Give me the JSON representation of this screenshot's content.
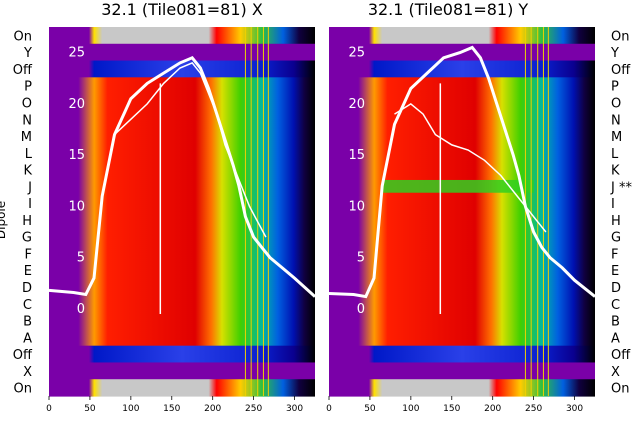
{
  "chart_data": {
    "type": "heatmap",
    "ylabel": "Dipole",
    "dipole_labels_left": [
      "On",
      "Y",
      "Off",
      "P",
      "O",
      "N",
      "M",
      "L",
      "K",
      "J",
      "I",
      "H",
      "G",
      "F",
      "E",
      "D",
      "C",
      "B",
      "A",
      "Off",
      "X",
      "On"
    ],
    "dipole_labels_right": [
      "On",
      "Y",
      "Off",
      "P",
      "O",
      "N",
      "M",
      "L",
      "K",
      "J **",
      "I",
      "H",
      "G",
      "F",
      "E",
      "D",
      "C",
      "B",
      "A",
      "Off",
      "X",
      "On"
    ],
    "xlim": [
      0,
      325
    ],
    "xticks": [
      0,
      50,
      100,
      150,
      200,
      250,
      300
    ],
    "overlay_ylim": [
      -8.5,
      27.5
    ],
    "overlay_yticks": [
      0,
      5,
      10,
      15,
      20,
      25
    ],
    "panels": [
      {
        "title": "32.1 (Tile081=81) X",
        "bandpass_db": {
          "x": [
            0,
            30,
            45,
            55,
            65,
            80,
            100,
            120,
            140,
            160,
            175,
            185,
            195,
            205,
            215,
            225,
            232,
            240,
            250,
            260,
            270,
            285,
            300,
            325
          ],
          "y": [
            1.8,
            1.6,
            1.4,
            3,
            11,
            17,
            20.5,
            22,
            23,
            24,
            24.5,
            23.5,
            21.5,
            19,
            16.5,
            14,
            12,
            9,
            7,
            6,
            5,
            4,
            3,
            1.2
          ]
        },
        "secondary_db": {
          "x": [
            80,
            100,
            120,
            140,
            160,
            175,
            185,
            195,
            205,
            215,
            225,
            235,
            245,
            255,
            265
          ],
          "y": [
            17,
            18.5,
            20,
            22,
            23.5,
            24,
            23,
            21,
            19,
            16,
            14,
            12,
            10,
            8.5,
            7
          ]
        }
      },
      {
        "title": "32.1 (Tile081=81) Y",
        "bandpass_db": {
          "x": [
            0,
            30,
            45,
            55,
            65,
            80,
            100,
            120,
            140,
            160,
            175,
            185,
            195,
            205,
            215,
            225,
            232,
            240,
            250,
            260,
            270,
            285,
            300,
            325
          ],
          "y": [
            1.5,
            1.4,
            1.2,
            3,
            12,
            18,
            21.5,
            23,
            24.5,
            25,
            25.5,
            24.5,
            22.5,
            20,
            17.5,
            15,
            13,
            10,
            7.5,
            6,
            5,
            4,
            2.8,
            1.2
          ]
        },
        "secondary_db": {
          "x": [
            80,
            100,
            115,
            130,
            150,
            170,
            190,
            210,
            230,
            245,
            255,
            265
          ],
          "y": [
            19,
            20,
            19,
            17,
            16,
            15.5,
            14.5,
            13,
            11,
            9.5,
            8.5,
            7.5
          ]
        }
      }
    ]
  },
  "colors": {
    "outer": "#7a00a8",
    "inner_grey": "#c8c8c8",
    "off_band": "#0a20d0",
    "overlay": "#ffffff"
  }
}
